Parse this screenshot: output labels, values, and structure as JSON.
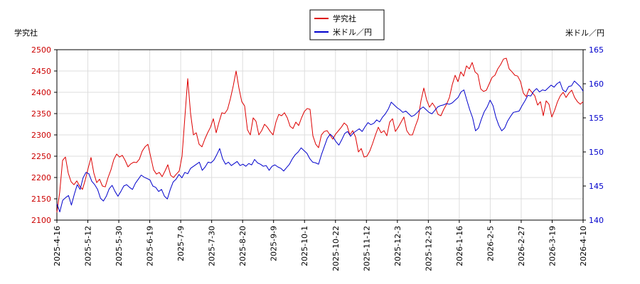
{
  "chart_data": {
    "type": "line",
    "legend": {
      "position": "top-center"
    },
    "grid": true,
    "left_axis_title": "学究社",
    "right_axis_title": "米ドル／円",
    "left_ylim": [
      2100,
      2500
    ],
    "right_ylim": [
      140,
      165
    ],
    "left_ticks": [
      "2100",
      "2150",
      "2200",
      "2250",
      "2300",
      "2350",
      "2400",
      "2450",
      "2500"
    ],
    "right_ticks": [
      "140",
      "145",
      "150",
      "155",
      "160",
      "165"
    ],
    "x_ticks": [
      "2025-4-16",
      "2025-5-12",
      "2025-5-30",
      "2025-6-19",
      "2025-7-9",
      "2025-7-30",
      "2025-8-20",
      "2025-9-9",
      "2025-10-1",
      "2025-10-22",
      "2025-11-12",
      "2025-12-3",
      "2025-12-23",
      "2026-1-16",
      "2026-2-5",
      "2026-2-27",
      "2026-3-19",
      "2026-4-10"
    ],
    "series": [
      {
        "name": "学究社",
        "axis": "left",
        "color": "#dd0000",
        "values": [
          2118,
          2166,
          2240,
          2248,
          2210,
          2190,
          2183,
          2192,
          2180,
          2172,
          2195,
          2222,
          2247,
          2210,
          2188,
          2196,
          2180,
          2178,
          2200,
          2218,
          2242,
          2255,
          2248,
          2252,
          2240,
          2225,
          2232,
          2236,
          2235,
          2243,
          2262,
          2272,
          2278,
          2248,
          2218,
          2208,
          2212,
          2202,
          2215,
          2230,
          2205,
          2200,
          2208,
          2215,
          2250,
          2342,
          2432,
          2350,
          2300,
          2305,
          2278,
          2272,
          2290,
          2305,
          2318,
          2338,
          2305,
          2330,
          2352,
          2350,
          2360,
          2385,
          2415,
          2450,
          2410,
          2378,
          2368,
          2312,
          2300,
          2340,
          2332,
          2300,
          2310,
          2325,
          2318,
          2308,
          2300,
          2330,
          2348,
          2345,
          2352,
          2340,
          2320,
          2315,
          2330,
          2322,
          2340,
          2355,
          2362,
          2360,
          2298,
          2278,
          2270,
          2300,
          2308,
          2310,
          2300,
          2290,
          2302,
          2310,
          2318,
          2328,
          2322,
          2300,
          2310,
          2295,
          2260,
          2268,
          2248,
          2250,
          2262,
          2280,
          2300,
          2318,
          2305,
          2310,
          2298,
          2330,
          2338,
          2308,
          2318,
          2330,
          2342,
          2310,
          2300,
          2300,
          2320,
          2338,
          2380,
          2410,
          2382,
          2365,
          2375,
          2365,
          2348,
          2345,
          2360,
          2372,
          2388,
          2418,
          2440,
          2425,
          2448,
          2438,
          2462,
          2455,
          2470,
          2448,
          2442,
          2408,
          2402,
          2405,
          2420,
          2435,
          2440,
          2455,
          2465,
          2478,
          2480,
          2455,
          2448,
          2440,
          2438,
          2425,
          2398,
          2390,
          2408,
          2400,
          2392,
          2370,
          2378,
          2345,
          2380,
          2372,
          2342,
          2358,
          2378,
          2392,
          2400,
          2388,
          2398,
          2405,
          2388,
          2378,
          2372,
          2378
        ]
      },
      {
        "name": "米ドル／円",
        "axis": "right",
        "color": "#0000cc",
        "values": [
          142.4,
          141.2,
          142.9,
          143.3,
          143.6,
          142.2,
          143.8,
          145.2,
          144.5,
          146.2,
          147.0,
          146.8,
          145.7,
          145.2,
          144.5,
          143.2,
          142.8,
          143.5,
          144.6,
          145.1,
          144.2,
          143.5,
          144.2,
          145.0,
          145.2,
          144.8,
          144.5,
          145.4,
          146.0,
          146.6,
          146.3,
          146.1,
          145.9,
          145.0,
          144.8,
          144.2,
          144.5,
          143.5,
          143.1,
          144.5,
          145.6,
          146.0,
          146.7,
          146.2,
          147.0,
          146.8,
          147.6,
          147.9,
          148.2,
          148.5,
          147.3,
          147.8,
          148.5,
          148.4,
          148.8,
          149.6,
          150.5,
          149.0,
          148.2,
          148.5,
          148.0,
          148.3,
          148.6,
          148.0,
          148.2,
          147.9,
          148.3,
          148.1,
          148.9,
          148.4,
          148.2,
          147.9,
          148.0,
          147.3,
          147.9,
          148.1,
          147.8,
          147.6,
          147.2,
          147.7,
          148.2,
          149.0,
          149.6,
          150.0,
          150.6,
          150.2,
          149.8,
          149.0,
          148.5,
          148.4,
          148.2,
          149.6,
          150.8,
          152.0,
          152.6,
          152.2,
          151.5,
          151.0,
          151.8,
          152.7,
          153.0,
          152.3,
          152.8,
          153.1,
          153.4,
          153.0,
          153.7,
          154.3,
          154.0,
          154.2,
          154.7,
          154.4,
          155.1,
          155.6,
          156.3,
          157.3,
          156.9,
          156.5,
          156.2,
          155.8,
          156.0,
          155.6,
          155.2,
          155.4,
          155.8,
          156.3,
          156.6,
          156.2,
          155.8,
          155.6,
          156.1,
          156.6,
          156.8,
          156.9,
          157.1,
          157.0,
          157.2,
          157.6,
          158.0,
          158.8,
          159.1,
          157.6,
          156.2,
          155.0,
          153.1,
          153.5,
          154.8,
          155.9,
          156.6,
          157.6,
          156.8,
          155.1,
          153.9,
          153.1,
          153.5,
          154.5,
          155.2,
          155.8,
          155.9,
          156.0,
          156.8,
          157.5,
          158.3,
          158.2,
          158.9,
          159.3,
          158.8,
          159.1,
          159.0,
          159.4,
          159.8,
          159.5,
          160.0,
          160.3,
          159.1,
          158.8,
          159.6,
          159.7,
          160.4,
          160.0,
          159.6,
          158.9
        ]
      }
    ]
  }
}
